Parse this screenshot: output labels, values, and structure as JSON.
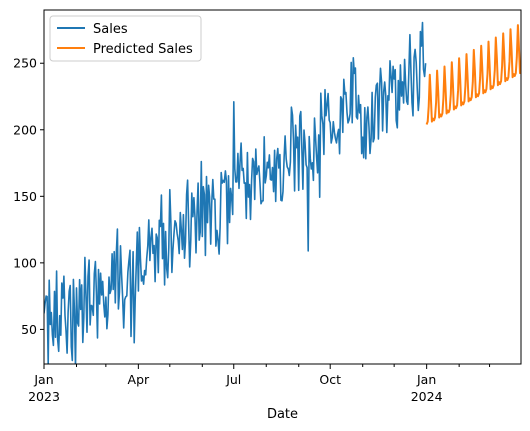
{
  "chart_data": {
    "type": "line",
    "title": "",
    "xlabel": "Date",
    "ylabel": "",
    "grid": false,
    "legend_position": "top-left",
    "xlim": [
      "2023-01-01",
      "2024-03-31"
    ],
    "ylim": [
      24,
      290
    ],
    "x_ticks": [
      {
        "date": "2023-01-01",
        "label": "Jan",
        "year_label": "2023"
      },
      {
        "date": "2023-04-01",
        "label": "Apr",
        "year_label": ""
      },
      {
        "date": "2023-07-01",
        "label": "Jul",
        "year_label": ""
      },
      {
        "date": "2023-10-01",
        "label": "Oct",
        "year_label": ""
      },
      {
        "date": "2024-01-01",
        "label": "Jan",
        "year_label": "2024"
      }
    ],
    "x_minor_ticks": [
      "2023-02-01",
      "2023-03-01",
      "2023-05-01",
      "2023-06-01",
      "2023-08-01",
      "2023-09-01",
      "2023-11-01",
      "2023-12-01",
      "2024-02-01",
      "2024-03-01"
    ],
    "y_ticks": [
      50,
      100,
      150,
      200,
      250
    ],
    "series": [
      {
        "name": "Sales",
        "color": "#1f77b4",
        "x_start": "2023-01-01",
        "x_end": "2023-12-31",
        "trend": [
          50,
          250
        ],
        "noise_amplitude": 18,
        "points": [
          {
            "x": "2023-01-01",
            "y": 62
          },
          {
            "x": "2023-01-03",
            "y": 75
          },
          {
            "x": "2023-01-06",
            "y": 87
          },
          {
            "x": "2023-01-10",
            "y": 38
          },
          {
            "x": "2023-01-20",
            "y": 90
          },
          {
            "x": "2023-01-27",
            "y": 37
          },
          {
            "x": "2023-03-28",
            "y": 40
          },
          {
            "x": "2023-04-21",
            "y": 132
          },
          {
            "x": "2023-05-01",
            "y": 155
          },
          {
            "x": "2023-07-01",
            "y": 221
          },
          {
            "x": "2023-07-20",
            "y": 176
          },
          {
            "x": "2023-08-25",
            "y": 217
          },
          {
            "x": "2023-09-10",
            "y": 109
          },
          {
            "x": "2023-09-28",
            "y": 219
          },
          {
            "x": "2023-11-15",
            "y": 235
          },
          {
            "x": "2023-12-05",
            "y": 237
          },
          {
            "x": "2023-12-31",
            "y": 250
          }
        ]
      },
      {
        "name": "Predicted Sales",
        "color": "#ff7f0e",
        "x_start": "2024-01-01",
        "x_end": "2024-03-31",
        "base": [
          204,
          243
        ],
        "peak": [
          240,
          280
        ],
        "period_days": 7
      }
    ]
  }
}
